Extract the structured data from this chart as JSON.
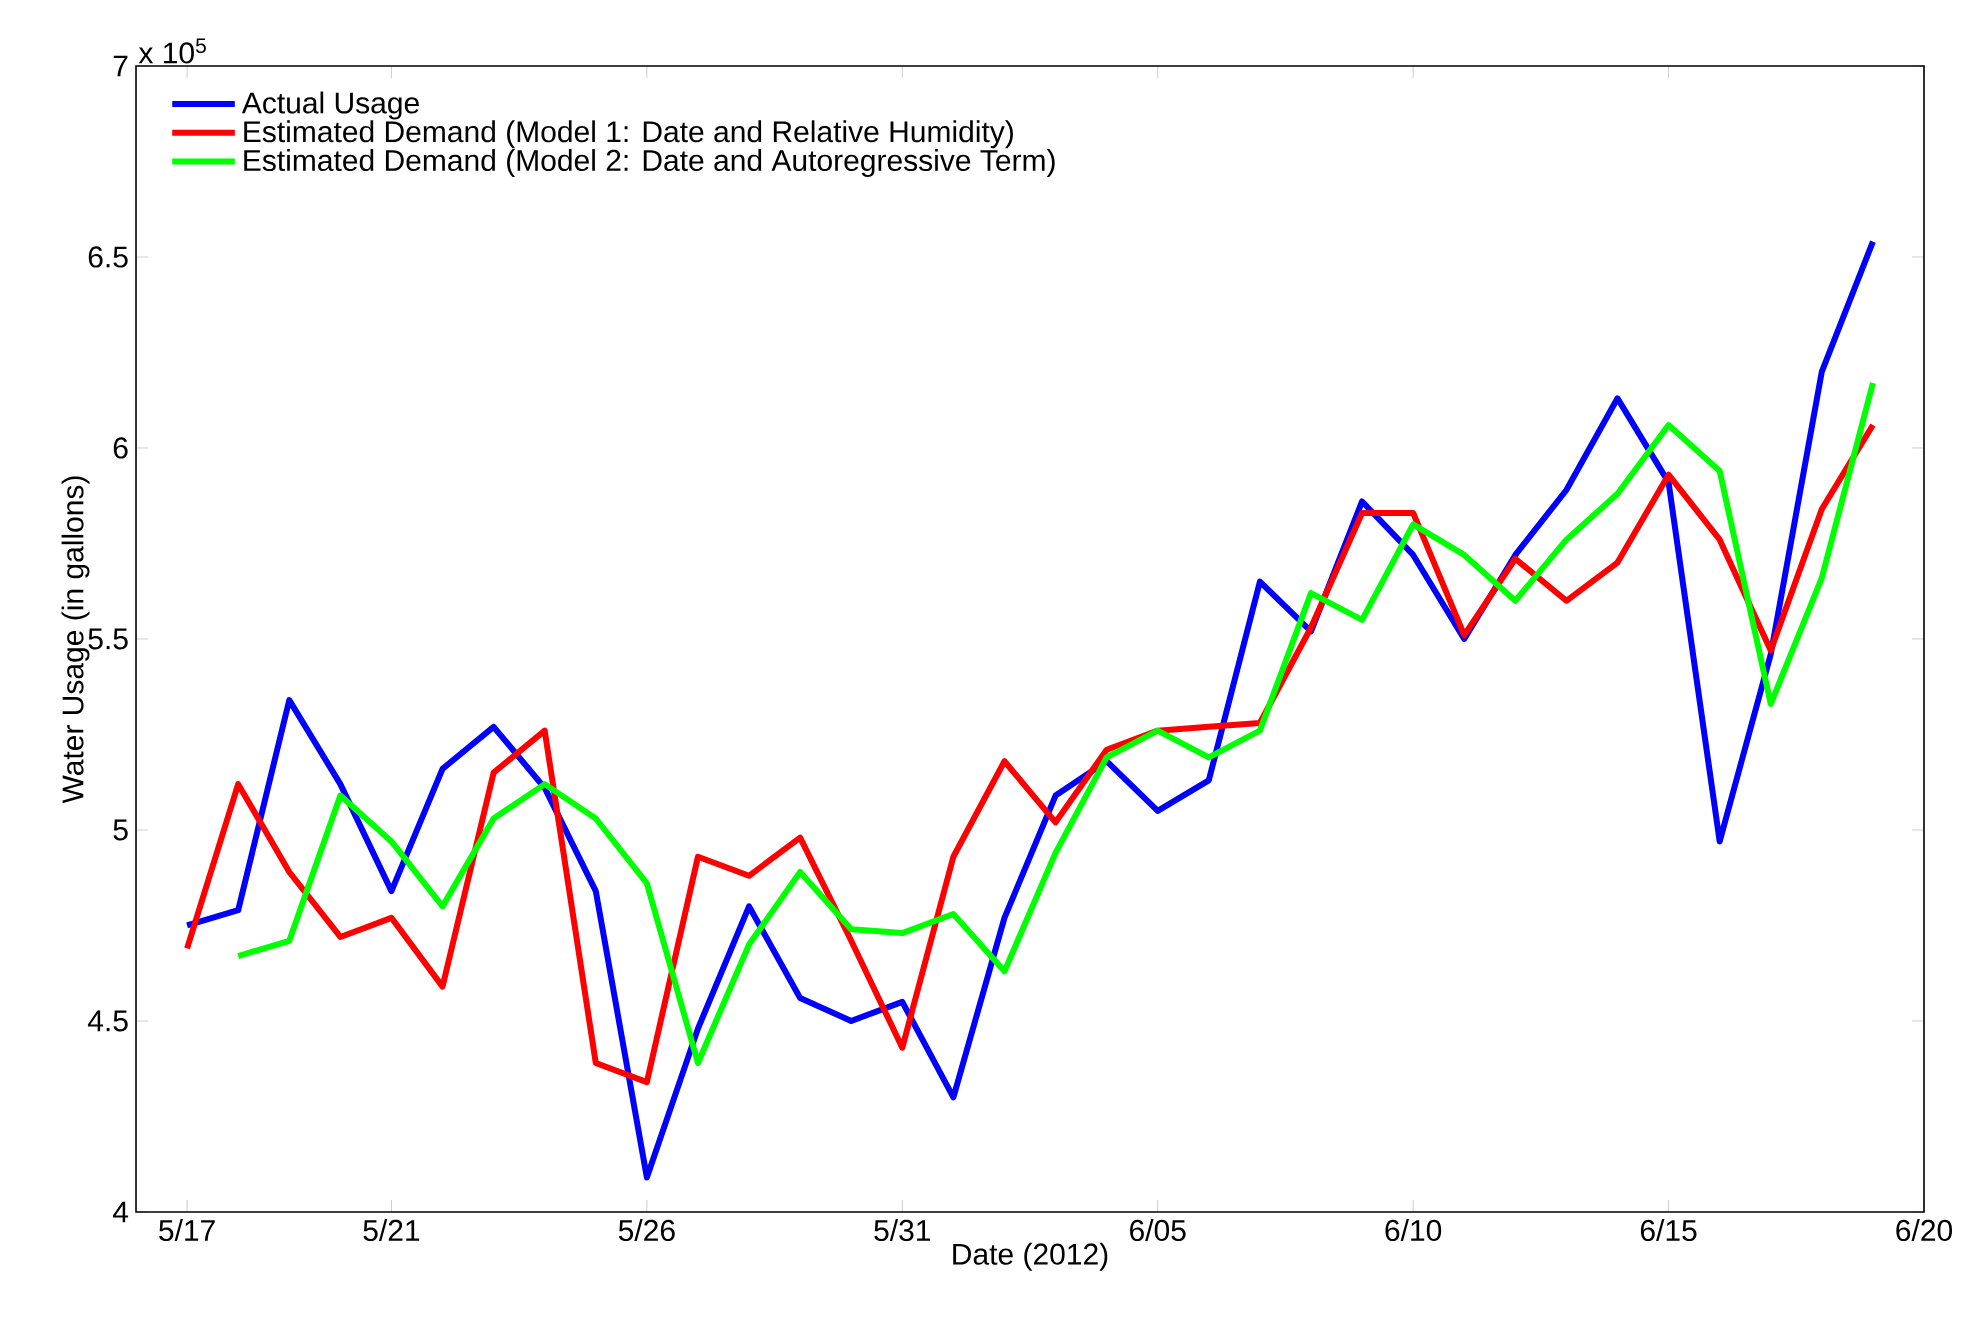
{
  "chart_data": {
    "type": "line",
    "xlabel": "Date (2012)",
    "ylabel": "Water Usage (in gallons)",
    "annotations": [
      "x 10$^{5}$"
    ],
    "x": [
      "2012-05-17",
      "2012-05-18",
      "2012-05-19",
      "2012-05-20",
      "2012-05-21",
      "2012-05-22",
      "2012-05-23",
      "2012-05-24",
      "2012-05-25",
      "2012-05-26",
      "2012-05-27",
      "2012-05-28",
      "2012-05-29",
      "2012-05-30",
      "2012-05-31",
      "2012-06-01",
      "2012-06-02",
      "2012-06-03",
      "2012-06-04",
      "2012-06-05",
      "2012-06-06",
      "2012-06-07",
      "2012-06-08",
      "2012-06-09",
      "2012-06-10",
      "2012-06-11",
      "2012-06-12",
      "2012-06-13",
      "2012-06-14",
      "2012-06-15",
      "2012-06-16",
      "2012-06-17",
      "2012-06-18",
      "2012-06-19"
    ],
    "series": [
      {
        "name": "Actual Usage",
        "color": "#0000ff",
        "values": [
          4.75,
          4.79,
          5.34,
          5.12,
          4.84,
          5.16,
          5.27,
          5.11,
          4.84,
          4.09,
          4.48,
          4.8,
          4.56,
          4.5,
          4.55,
          4.3,
          4.77,
          5.09,
          5.18,
          5.05,
          5.13,
          5.65,
          5.52,
          5.86,
          5.72,
          5.5,
          5.72,
          5.89,
          6.13,
          5.91,
          4.97,
          5.46,
          6.2,
          6.54
        ]
      },
      {
        "name": "Estimated Demand (Model 1: Date and Relative Humidity)",
        "color": "#ff0000",
        "values": [
          4.69,
          5.12,
          4.89,
          4.72,
          4.77,
          4.59,
          5.15,
          5.26,
          4.39,
          4.34,
          4.93,
          4.88,
          4.98,
          4.71,
          4.43,
          4.93,
          5.18,
          5.02,
          5.21,
          5.26,
          5.27,
          5.28,
          5.53,
          5.83,
          5.83,
          5.51,
          5.71,
          5.6,
          5.7,
          5.93,
          5.76,
          5.47,
          5.84,
          6.06
        ]
      },
      {
        "name": "Estimated Demand (Model 2: Date and Autoregressive Term)",
        "color": "#00ff00",
        "values": [
          null,
          4.67,
          4.71,
          5.09,
          4.97,
          4.8,
          5.03,
          5.12,
          5.03,
          4.86,
          4.39,
          4.7,
          4.89,
          4.74,
          4.73,
          4.78,
          4.63,
          4.94,
          5.19,
          5.26,
          5.19,
          5.26,
          5.62,
          5.55,
          5.8,
          5.72,
          5.6,
          5.76,
          5.88,
          6.06,
          5.94,
          5.33,
          5.66,
          6.17
        ]
      }
    ],
    "xlim": [
      "2012-05-16",
      "2012-06-20"
    ],
    "xticks": [
      {
        "value": "2012-05-17",
        "label": "5/17"
      },
      {
        "value": "2012-05-21",
        "label": "5/21"
      },
      {
        "value": "2012-05-26",
        "label": "5/26"
      },
      {
        "value": "2012-05-31",
        "label": "5/31"
      },
      {
        "value": "2012-06-05",
        "label": "6/05"
      },
      {
        "value": "2012-06-10",
        "label": "6/10"
      },
      {
        "value": "2012-06-15",
        "label": "6/15"
      },
      {
        "value": "2012-06-20",
        "label": "6/20"
      }
    ],
    "ylim": [
      4,
      7
    ],
    "yticks": [
      4,
      4.5,
      5,
      5.5,
      6,
      6.5,
      7
    ],
    "legend": "top left",
    "marker": "none",
    "line_style": "solid"
  }
}
